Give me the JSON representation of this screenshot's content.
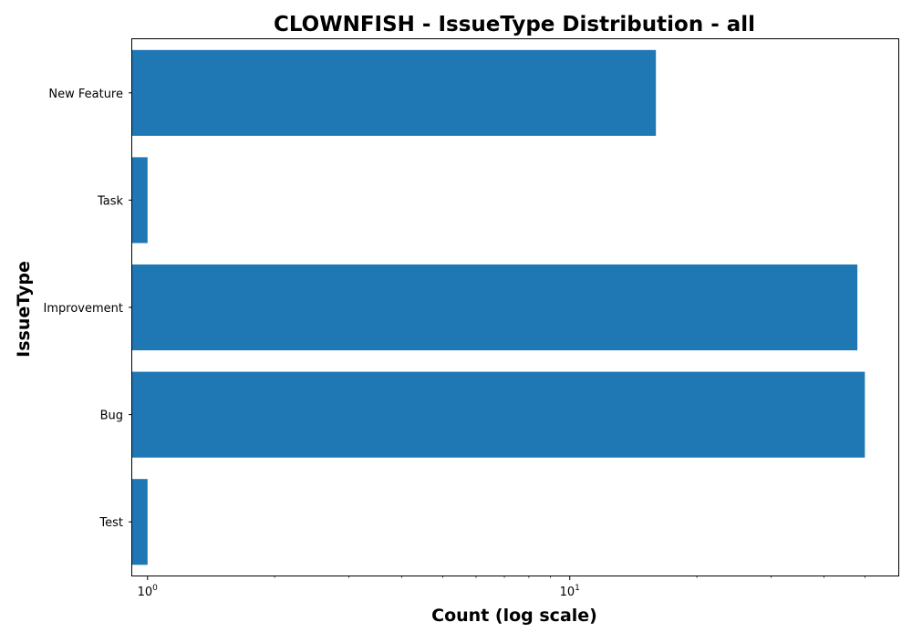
{
  "chart_data": {
    "type": "bar",
    "orientation": "horizontal",
    "title": "CLOWNFISH - IssueType Distribution - all",
    "xlabel": "Count (log scale)",
    "ylabel": "IssueType",
    "x_scale": "log",
    "xlim": [
      0.92,
      60
    ],
    "categories": [
      "New Feature",
      "Task",
      "Improvement",
      "Bug",
      "Test"
    ],
    "values": [
      16,
      1,
      48,
      50,
      1
    ],
    "x_major_ticks": [
      {
        "value": 1,
        "base": "10",
        "exponent": "0"
      },
      {
        "value": 10,
        "base": "10",
        "exponent": "1"
      }
    ],
    "x_minor_ticks": [
      2,
      3,
      4,
      5,
      6,
      7,
      8,
      9,
      20,
      30,
      40,
      50
    ],
    "bar_color": "#1f77b4",
    "grid": false,
    "legend": "none"
  }
}
